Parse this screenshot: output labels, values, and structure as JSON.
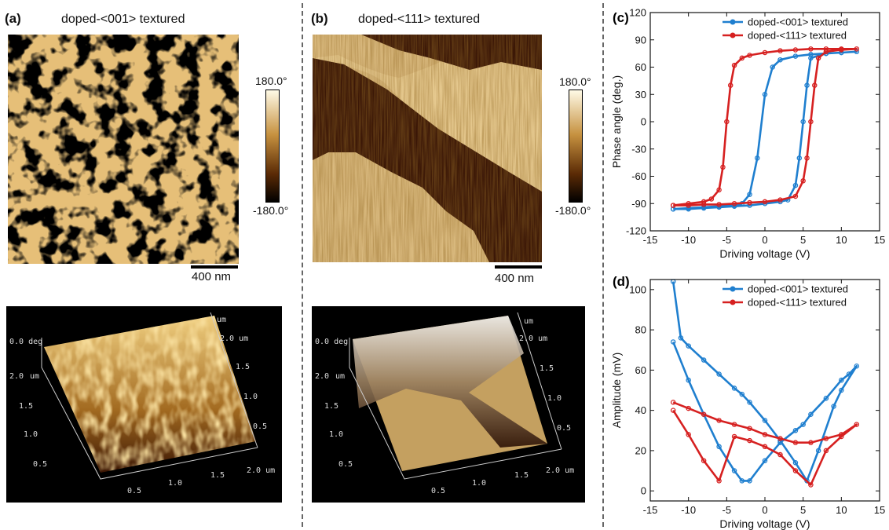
{
  "panel_a": {
    "label": "(a)",
    "title": "doped-<001> textured",
    "colorbar_max": "180.0°",
    "colorbar_min": "-180.0°",
    "scale_bar": "400 nm",
    "plot3d": {
      "z_label": "0.0 deg",
      "y_top": "2.0 um",
      "y_ticks": [
        "2.0",
        "1.5",
        "1.0",
        "0.5"
      ],
      "right_ticks": [
        "1.5",
        "1.0",
        "0.5"
      ],
      "x_ticks": [
        "0.5",
        "1.0",
        "1.5",
        "2.0 um"
      ]
    }
  },
  "panel_b": {
    "label": "(b)",
    "title": "doped-<111> textured",
    "colorbar_max": "180.0°",
    "colorbar_min": "-180.0°",
    "scale_bar": "400 nm",
    "plot3d": {
      "z_label": "0.0 deg",
      "y_top": "2.0 um",
      "y_ticks": [
        "2.0",
        "1.5",
        "1.0",
        "0.5"
      ],
      "right_ticks": [
        "1.5",
        "1.0",
        "0.5"
      ],
      "x_ticks": [
        "0.5",
        "1.0",
        "1.5",
        "2.0 um"
      ]
    }
  },
  "colors": {
    "series_001": "#1f7fcf",
    "series_111": "#d62020",
    "afm_dark": "#4a1c05",
    "afm_light": "#e9c27a"
  },
  "chart_data": [
    {
      "label": "(c)",
      "type": "line",
      "xlabel": "Driving voltage (V)",
      "ylabel": "Phase angle (deg.)",
      "xlim": [
        -15,
        15
      ],
      "ylim": [
        -120,
        120
      ],
      "xticks": [
        "-15",
        "-10",
        "-5",
        "0",
        "5",
        "10",
        "15"
      ],
      "yticks": [
        "120",
        "90",
        "60",
        "30",
        "0",
        "-30",
        "-60",
        "-90",
        "-120"
      ],
      "legend_position": "top-right",
      "series": [
        {
          "name": "doped-<001> textured",
          "x": [
            -12,
            -10,
            -8,
            -6,
            -4,
            -3,
            -2,
            -1,
            0,
            1,
            2,
            4,
            6,
            8,
            10,
            12,
            10,
            8,
            6,
            5.5,
            5,
            4.5,
            4,
            3,
            2,
            0,
            -2,
            -4,
            -6,
            -8,
            -10,
            -12
          ],
          "y": [
            -96,
            -95,
            -94,
            -93,
            -92,
            -90,
            -80,
            -40,
            30,
            60,
            68,
            72,
            74,
            75,
            76,
            77,
            76,
            75,
            70,
            40,
            0,
            -40,
            -70,
            -86,
            -88,
            -90,
            -92,
            -93,
            -94,
            -95,
            -96,
            -96
          ]
        },
        {
          "name": "doped-<111> textured",
          "x": [
            -12,
            -10,
            -8,
            -7,
            -6,
            -5.5,
            -5,
            -4.5,
            -4,
            -3,
            -2,
            0,
            2,
            4,
            6,
            8,
            10,
            12,
            10,
            8,
            7,
            6.5,
            6,
            5.5,
            5,
            4,
            2,
            0,
            -2,
            -4,
            -6,
            -8,
            -10,
            -12
          ],
          "y": [
            -92,
            -90,
            -88,
            -85,
            -75,
            -50,
            0,
            40,
            62,
            70,
            73,
            76,
            78,
            79,
            80,
            80,
            80,
            80,
            79,
            77,
            70,
            40,
            0,
            -40,
            -65,
            -82,
            -86,
            -88,
            -89,
            -90,
            -91,
            -91,
            -92,
            -92
          ]
        }
      ]
    },
    {
      "label": "(d)",
      "type": "line",
      "xlabel": "Driving voltage (V)",
      "ylabel": "Amplitude (mV)",
      "xlim": [
        -15,
        15
      ],
      "ylim": [
        -5,
        105
      ],
      "xticks": [
        "-15",
        "-10",
        "-5",
        "0",
        "5",
        "10",
        "15"
      ],
      "yticks": [
        "100",
        "80",
        "60",
        "40",
        "20",
        "0"
      ],
      "legend_position": "top-right",
      "series": [
        {
          "name": "doped-<001> textured",
          "x": [
            -12,
            -11,
            -10,
            -8,
            -6,
            -4,
            -3,
            -2,
            0,
            2,
            4,
            5.5,
            7,
            9,
            10,
            12,
            11,
            10,
            8,
            6,
            5,
            4,
            2,
            0,
            -2,
            -3,
            -4,
            -6,
            -8,
            -10,
            -12
          ],
          "y": [
            104,
            76,
            72,
            65,
            58,
            51,
            48,
            44,
            35,
            25,
            14,
            5,
            20,
            42,
            50,
            62,
            58,
            55,
            46,
            38,
            33,
            30,
            24,
            15,
            5,
            5,
            10,
            22,
            38,
            55,
            74
          ]
        },
        {
          "name": "doped-<111> textured",
          "x": [
            -12,
            -10,
            -8,
            -6,
            -4,
            -2,
            0,
            2,
            4,
            6,
            8,
            10,
            12,
            10,
            8,
            6,
            4,
            2,
            0,
            -2,
            -4,
            -6,
            -8,
            -10,
            -12
          ],
          "y": [
            44,
            41,
            38,
            35,
            33,
            31,
            28,
            26,
            24,
            24,
            26,
            28,
            33,
            27,
            20,
            3,
            10,
            18,
            22,
            25,
            27,
            5,
            15,
            28,
            40
          ]
        }
      ]
    }
  ]
}
